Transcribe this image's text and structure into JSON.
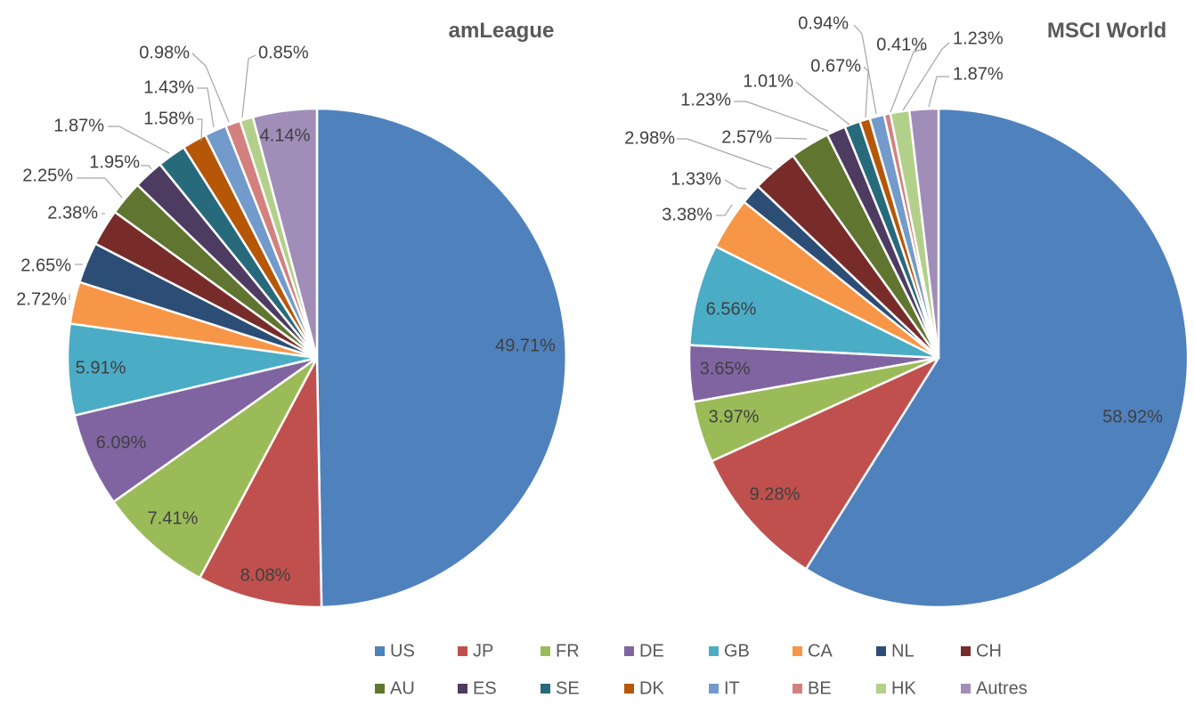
{
  "chart_data": [
    {
      "type": "pie",
      "title": "amLeague",
      "categories": [
        "US",
        "JP",
        "FR",
        "DE",
        "GB",
        "CA",
        "NL",
        "CH",
        "AU",
        "ES",
        "SE",
        "DK",
        "IT",
        "BE",
        "HK",
        "Autres"
      ],
      "values": [
        49.71,
        8.08,
        7.41,
        6.09,
        5.91,
        2.72,
        2.65,
        2.38,
        2.25,
        1.95,
        1.87,
        1.58,
        1.43,
        0.98,
        0.85,
        4.14
      ],
      "labels": [
        "49.71%",
        "8.08%",
        "7.41%",
        "6.09%",
        "5.91%",
        "2.72%",
        "2.65%",
        "2.38%",
        "2.25%",
        "1.95%",
        "1.87%",
        "1.58%",
        "1.43%",
        "0.98%",
        "0.85%",
        "4.14%"
      ],
      "start_angle_deg": 0,
      "direction": "clockwise"
    },
    {
      "type": "pie",
      "title": "MSCI World",
      "categories": [
        "US",
        "JP",
        "FR",
        "DE",
        "GB",
        "CA",
        "NL",
        "CH",
        "AU",
        "ES",
        "SE",
        "DK",
        "IT",
        "BE",
        "HK",
        "Autres"
      ],
      "values": [
        58.92,
        9.28,
        3.97,
        3.65,
        6.56,
        3.38,
        1.33,
        2.98,
        2.57,
        1.23,
        1.01,
        0.67,
        0.94,
        0.41,
        1.23,
        1.87
      ],
      "labels": [
        "58.92%",
        "9.28%",
        "3.97%",
        "3.65%",
        "6.56%",
        "3.38%",
        "1.33%",
        "2.98%",
        "2.57%",
        "1.23%",
        "1.01%",
        "0.67%",
        "0.94%",
        "0.41%",
        "1.23%",
        "1.87%"
      ],
      "start_angle_deg": 0,
      "direction": "clockwise"
    }
  ],
  "legend": {
    "position": "bottom",
    "items": [
      "US",
      "JP",
      "FR",
      "DE",
      "GB",
      "CA",
      "NL",
      "CH",
      "AU",
      "ES",
      "SE",
      "DK",
      "IT",
      "BE",
      "HK",
      "Autres"
    ]
  },
  "colors": {
    "US": "#4f81bd",
    "JP": "#c0504d",
    "FR": "#9bbb59",
    "DE": "#8064a2",
    "GB": "#4bacc6",
    "CA": "#f79646",
    "NL": "#2c4d75",
    "CH": "#772c2a",
    "AU": "#5f7530",
    "ES": "#4d3b62",
    "SE": "#276a7c",
    "DK": "#b65708",
    "IT": "#729aca",
    "BE": "#d3807e",
    "HK": "#b3d08a",
    "Autres": "#a08db8"
  }
}
